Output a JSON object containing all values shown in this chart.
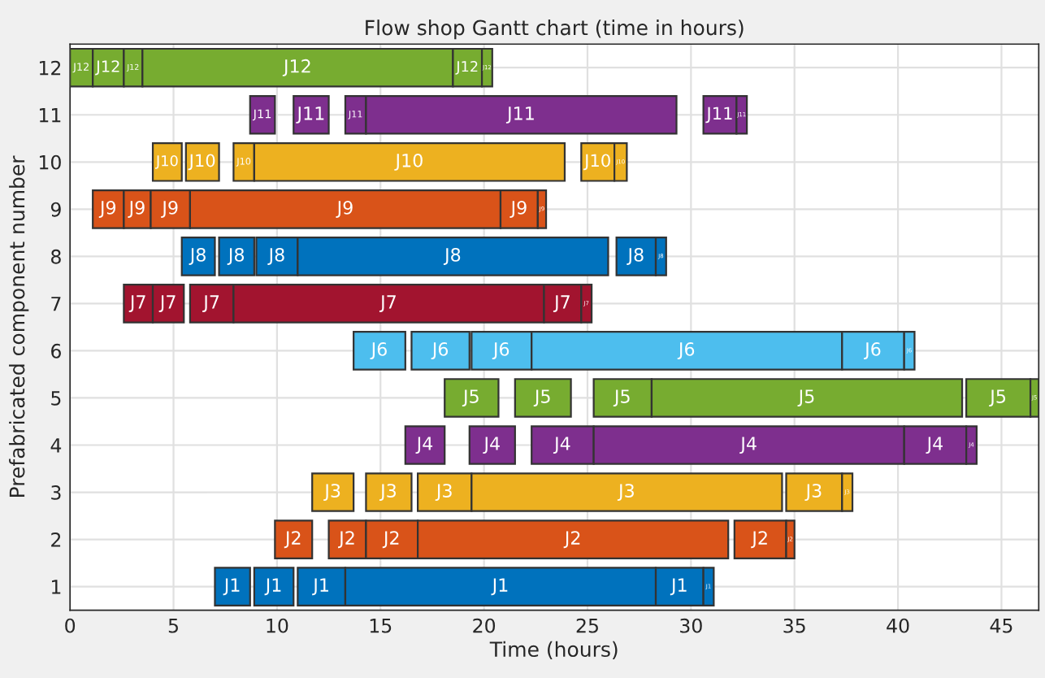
{
  "chart_data": {
    "type": "bar",
    "orientation": "horizontal",
    "title": "Flow shop Gantt chart (time in hours)",
    "xlabel": "Time (hours)",
    "ylabel": "Prefabricated component number",
    "categories": [
      "12",
      "11",
      "10",
      "9",
      "8",
      "7",
      "6",
      "5",
      "4",
      "3",
      "2",
      "1"
    ],
    "xlim": [
      0,
      46.8
    ],
    "xticks": [
      0,
      5,
      10,
      15,
      20,
      25,
      30,
      35,
      40,
      45
    ],
    "grid": true,
    "series": [
      {
        "values": [
          1.1,
          1.2,
          1.4,
          1.5,
          1.6,
          1.4,
          2.5,
          2.6,
          1.9,
          2.0,
          1.8,
          1.7
        ],
        "base": [
          0,
          8.7,
          4.0,
          1.1,
          5.4,
          2.6,
          13.7,
          18.1,
          16.2,
          11.7,
          9.9,
          7.0
        ],
        "colors": [
          "#77ac30",
          "#7e2f8e",
          "#edb120",
          "#d95319",
          "#0072bd",
          "#a2142f",
          "#4dbeee",
          "#77ac30",
          "#7e2f8e",
          "#edb120",
          "#d95319",
          "#0072bd"
        ],
        "value_labels": [
          "J12",
          "J11",
          "J10",
          "J9",
          "J8",
          "J7",
          "J6",
          "J5",
          "J4",
          "J3",
          "J2",
          "J1"
        ]
      },
      {
        "values": [
          1.5,
          1.7,
          1.6,
          1.3,
          1.7,
          1.5,
          2.8,
          2.7,
          2.2,
          2.2,
          1.8,
          1.9
        ],
        "base": [
          1.1,
          10.8,
          5.6,
          2.6,
          7.2,
          4.0,
          16.5,
          21.5,
          19.3,
          14.3,
          12.5,
          8.9
        ],
        "colors": [
          "#77ac30",
          "#7e2f8e",
          "#edb120",
          "#d95319",
          "#0072bd",
          "#a2142f",
          "#4dbeee",
          "#77ac30",
          "#7e2f8e",
          "#edb120",
          "#d95319",
          "#0072bd"
        ],
        "value_labels": [
          "J12",
          "J11",
          "J10",
          "J9",
          "J8",
          "J7",
          "J6",
          "J5",
          "J4",
          "J3",
          "J2",
          "J1"
        ]
      },
      {
        "values": [
          0.9,
          1.0,
          1.0,
          1.9,
          2.0,
          2.1,
          2.9,
          2.8,
          3.0,
          2.6,
          2.5,
          2.3
        ],
        "base": [
          2.6,
          13.3,
          7.9,
          3.9,
          9.0,
          5.8,
          19.4,
          25.3,
          22.3,
          16.8,
          14.3,
          11.0
        ],
        "colors": [
          "#77ac30",
          "#7e2f8e",
          "#edb120",
          "#d95319",
          "#0072bd",
          "#a2142f",
          "#4dbeee",
          "#77ac30",
          "#7e2f8e",
          "#edb120",
          "#d95319",
          "#0072bd"
        ],
        "value_labels": [
          "J12",
          "J11",
          "J10",
          "J9",
          "J8",
          "J7",
          "J6",
          "J5",
          "J4",
          "J3",
          "J2",
          "J1"
        ]
      },
      {
        "values": [
          15.0,
          15.0,
          15.0,
          15.0,
          15.0,
          15.0,
          15.0,
          15.0,
          15.0,
          15.0,
          15.0,
          15.0
        ],
        "base": [
          3.5,
          14.3,
          8.9,
          5.8,
          11.0,
          7.9,
          22.3,
          28.1,
          25.3,
          19.4,
          16.8,
          13.3
        ],
        "colors": [
          "#77ac30",
          "#7e2f8e",
          "#edb120",
          "#d95319",
          "#0072bd",
          "#a2142f",
          "#4dbeee",
          "#77ac30",
          "#7e2f8e",
          "#edb120",
          "#d95319",
          "#0072bd"
        ],
        "value_labels": [
          "J12",
          "J11",
          "J10",
          "J9",
          "J8",
          "J7",
          "J6",
          "J5",
          "J4",
          "J3",
          "J2",
          "J1"
        ]
      },
      {
        "values": [
          1.4,
          1.6,
          1.6,
          1.8,
          1.9,
          1.8,
          3.0,
          3.1,
          3.0,
          2.7,
          2.5,
          2.3
        ],
        "base": [
          18.5,
          30.6,
          24.7,
          20.8,
          26.4,
          22.9,
          37.3,
          43.3,
          40.3,
          34.6,
          32.1,
          28.3
        ],
        "colors": [
          "#77ac30",
          "#7e2f8e",
          "#edb120",
          "#d95319",
          "#0072bd",
          "#a2142f",
          "#4dbeee",
          "#77ac30",
          "#7e2f8e",
          "#edb120",
          "#d95319",
          "#0072bd"
        ],
        "value_labels": [
          "J12",
          "J11",
          "J10",
          "J9",
          "J8",
          "J7",
          "J6",
          "J5",
          "J4",
          "J3",
          "J2",
          "J1"
        ]
      },
      {
        "values": [
          0.5,
          0.5,
          0.6,
          0.4,
          0.5,
          0.5,
          0.5,
          0.4,
          0.5,
          0.5,
          0.4,
          0.5
        ],
        "base": [
          19.9,
          32.2,
          26.3,
          22.6,
          28.3,
          24.7,
          40.3,
          46.4,
          43.3,
          37.3,
          34.6,
          30.6
        ],
        "colors": [
          "#77ac30",
          "#7e2f8e",
          "#edb120",
          "#d95319",
          "#0072bd",
          "#a2142f",
          "#4dbeee",
          "#77ac30",
          "#7e2f8e",
          "#edb120",
          "#d95319",
          "#0072bd"
        ],
        "value_labels": [
          "J12",
          "J11",
          "J10",
          "J9",
          "J8",
          "J7",
          "J6",
          "J5",
          "J4",
          "J3",
          "J2",
          "J1"
        ]
      }
    ]
  }
}
